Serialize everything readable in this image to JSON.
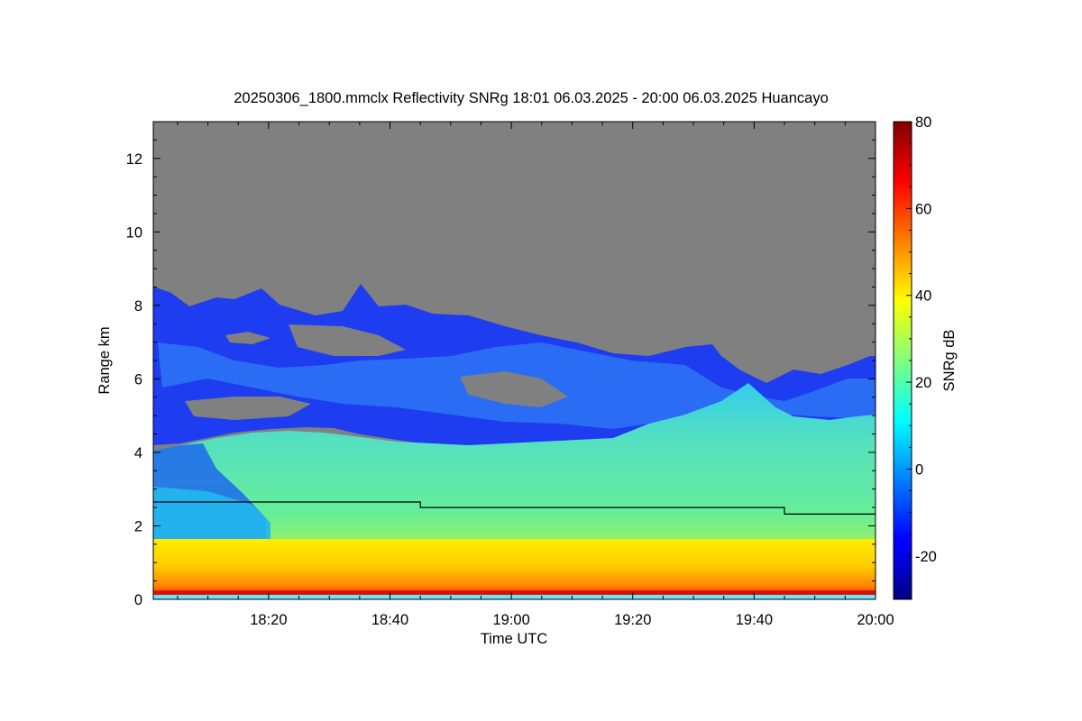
{
  "chart_data": {
    "type": "heatmap",
    "title": "20250306_1800.mmclx Reflectivity SNRg   18:01 06.03.2025 - 20:00 06.03.2025 Huancayo",
    "xlabel": "Time UTC",
    "ylabel": "Range km",
    "colorbar_label": "SNRg dB",
    "x_range_minutes_utc": [
      1081,
      1200
    ],
    "y_range_km": [
      0,
      13
    ],
    "x_ticks": [
      {
        "minutes": 1100,
        "label": "18:20"
      },
      {
        "minutes": 1120,
        "label": "18:40"
      },
      {
        "minutes": 1140,
        "label": "19:00"
      },
      {
        "minutes": 1160,
        "label": "19:20"
      },
      {
        "minutes": 1180,
        "label": "19:40"
      },
      {
        "minutes": 1200,
        "label": "20:00"
      }
    ],
    "y_ticks": [
      {
        "value": 0,
        "label": "0"
      },
      {
        "value": 2,
        "label": "2"
      },
      {
        "value": 4,
        "label": "4"
      },
      {
        "value": 6,
        "label": "6"
      },
      {
        "value": 8,
        "label": "8"
      },
      {
        "value": 10,
        "label": "10"
      },
      {
        "value": 12,
        "label": "12"
      }
    ],
    "colorbar_range_db": [
      -30,
      80
    ],
    "colorbar_ticks": [
      {
        "value": -20,
        "label": "-20"
      },
      {
        "value": 0,
        "label": "0"
      },
      {
        "value": 20,
        "label": "20"
      },
      {
        "value": 40,
        "label": "40"
      },
      {
        "value": 60,
        "label": "60"
      },
      {
        "value": 80,
        "label": "80"
      }
    ],
    "colormap": "jet",
    "no_signal_color": "#808080",
    "layers": [
      {
        "name": "near_surface",
        "y_km": [
          0.1,
          0.3
        ],
        "snr_db": 60
      },
      {
        "name": "boundary_layer",
        "y_km": [
          0.3,
          1.6
        ],
        "snr_db": 40
      },
      {
        "name": "lower_cloud",
        "y_km": [
          1.6,
          4.8
        ],
        "snr_db": 14
      },
      {
        "name": "upper_cloud",
        "y_km": [
          4.2,
          8.5
        ],
        "snr_db": -15
      }
    ],
    "lines": [
      {
        "name": "step_line",
        "points": [
          [
            1081,
            2.65
          ],
          [
            1125,
            2.65
          ],
          [
            1125,
            2.5
          ],
          [
            1185,
            2.5
          ],
          [
            1185,
            2.32
          ],
          [
            1200,
            2.32
          ]
        ]
      }
    ]
  }
}
